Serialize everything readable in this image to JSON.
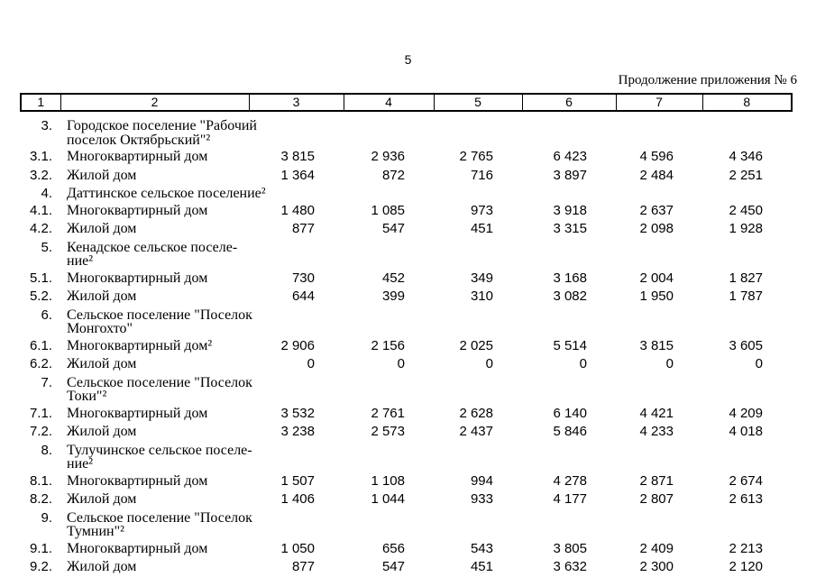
{
  "page": {
    "number": "5",
    "continuation": "Продолжение приложения № 6"
  },
  "table": {
    "column_numbers": [
      "1",
      "2",
      "3",
      "4",
      "5",
      "6",
      "7",
      "8"
    ],
    "rows": [
      {
        "num": "3.",
        "label": "Городское поселение \"Рабочий\nпоселок Октябрьский\"²",
        "values": []
      },
      {
        "num": "3.1.",
        "label": "Многоквартирный дом",
        "values": [
          "3 815",
          "2 936",
          "2 765",
          "6 423",
          "4 596",
          "4 346"
        ]
      },
      {
        "num": "3.2.",
        "label": "Жилой дом",
        "values": [
          "1 364",
          "872",
          "716",
          "3 897",
          "2 484",
          "2 251"
        ]
      },
      {
        "num": "4.",
        "label": "Даттинское сельское поселение²",
        "values": []
      },
      {
        "num": "4.1.",
        "label": "Многоквартирный дом",
        "values": [
          "1 480",
          "1 085",
          "973",
          "3 918",
          "2 637",
          "2 450"
        ]
      },
      {
        "num": "4.2.",
        "label": "Жилой дом",
        "values": [
          "877",
          "547",
          "451",
          "3 315",
          "2 098",
          "1 928"
        ]
      },
      {
        "num": "5.",
        "label": "Кенадское сельское поселе-\nние²",
        "values": []
      },
      {
        "num": "5.1.",
        "label": "Многоквартирный дом",
        "values": [
          "730",
          "452",
          "349",
          "3 168",
          "2 004",
          "1 827"
        ]
      },
      {
        "num": "5.2.",
        "label": "Жилой дом",
        "values": [
          "644",
          "399",
          "310",
          "3 082",
          "1 950",
          "1 787"
        ]
      },
      {
        "num": "6.",
        "label": "Сельское поселение \"Поселок\nМонгохто\"",
        "values": []
      },
      {
        "num": "6.1.",
        "label": "Многоквартирный дом²",
        "values": [
          "2 906",
          "2 156",
          "2 025",
          "5 514",
          "3 815",
          "3 605"
        ]
      },
      {
        "num": "6.2.",
        "label": "Жилой дом",
        "values": [
          "0",
          "0",
          "0",
          "0",
          "0",
          "0"
        ]
      },
      {
        "num": "7.",
        "label": "Сельское поселение \"Поселок\nТоки\"²",
        "values": []
      },
      {
        "num": "7.1.",
        "label": "Многоквартирный дом",
        "values": [
          "3 532",
          "2 761",
          "2 628",
          "6 140",
          "4 421",
          "4 209"
        ]
      },
      {
        "num": "7.2.",
        "label": "Жилой дом",
        "values": [
          "3 238",
          "2 573",
          "2 437",
          "5 846",
          "4 233",
          "4 018"
        ]
      },
      {
        "num": "8.",
        "label": "Тулучинское сельское поселе-\nние²",
        "values": []
      },
      {
        "num": "8.1.",
        "label": "Многоквартирный дом",
        "values": [
          "1 507",
          "1 108",
          "994",
          "4 278",
          "2 871",
          "2 674"
        ]
      },
      {
        "num": "8.2.",
        "label": "Жилой дом",
        "values": [
          "1 406",
          "1 044",
          "933",
          "4 177",
          "2 807",
          "2 613"
        ]
      },
      {
        "num": "9.",
        "label": "Сельское поселение \"Поселок\nТумнин\"²",
        "values": []
      },
      {
        "num": "9.1.",
        "label": "Многоквартирный дом",
        "values": [
          "1 050",
          "656",
          "543",
          "3 805",
          "2 409",
          "2 213"
        ]
      },
      {
        "num": "9.2.",
        "label": "Жилой дом",
        "values": [
          "877",
          "547",
          "451",
          "3 632",
          "2 300",
          "2 120"
        ]
      }
    ]
  }
}
